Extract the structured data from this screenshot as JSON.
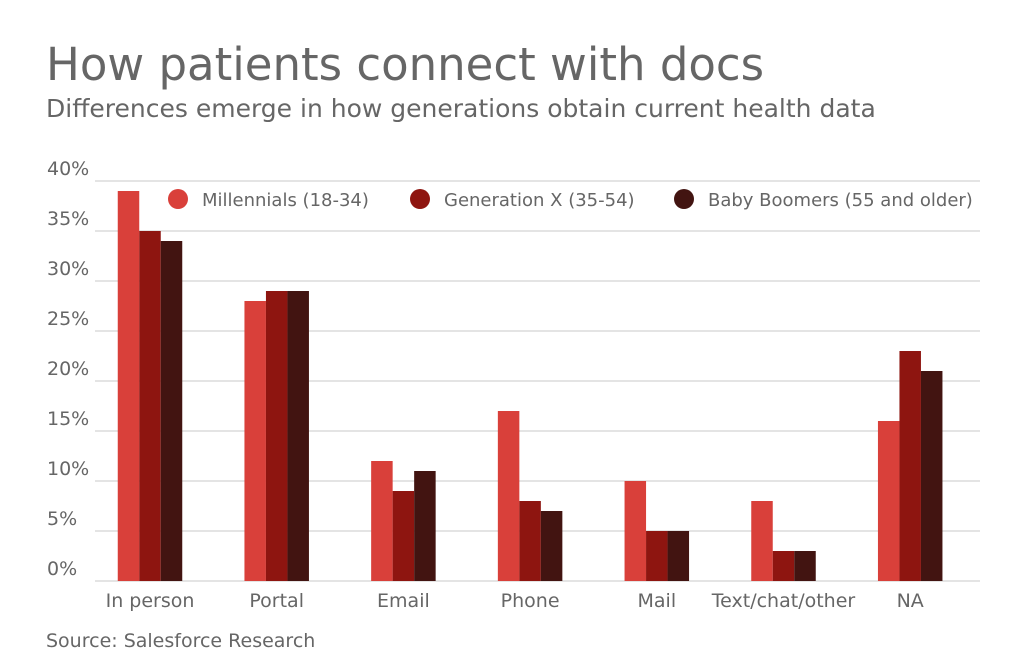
{
  "chart_data": {
    "type": "bar",
    "title": "How patients connect with docs",
    "subtitle": "Differences emerge in how generations obtain current health data",
    "source": "Source: Salesforce Research",
    "categories": [
      "In person",
      "Portal",
      "Email",
      "Phone",
      "Mail",
      "Text/chat/other",
      "NA"
    ],
    "series": [
      {
        "name": "Millennials (18-34)",
        "color": "#d9403a",
        "values": [
          39,
          28,
          12,
          17,
          10,
          8,
          16
        ]
      },
      {
        "name": "Generation X (35-54)",
        "color": "#8e1510",
        "values": [
          35,
          29,
          9,
          8,
          5,
          3,
          23
        ]
      },
      {
        "name": "Baby Boomers (55 and older)",
        "color": "#421411",
        "values": [
          34,
          29,
          11,
          7,
          5,
          3,
          21
        ]
      }
    ],
    "yticks": [
      "0%",
      "5%",
      "10%",
      "15%",
      "20%",
      "25%",
      "30%",
      "35%",
      "40%"
    ],
    "ylim": [
      0,
      40
    ],
    "grid": true,
    "legend_position": "top-right"
  }
}
